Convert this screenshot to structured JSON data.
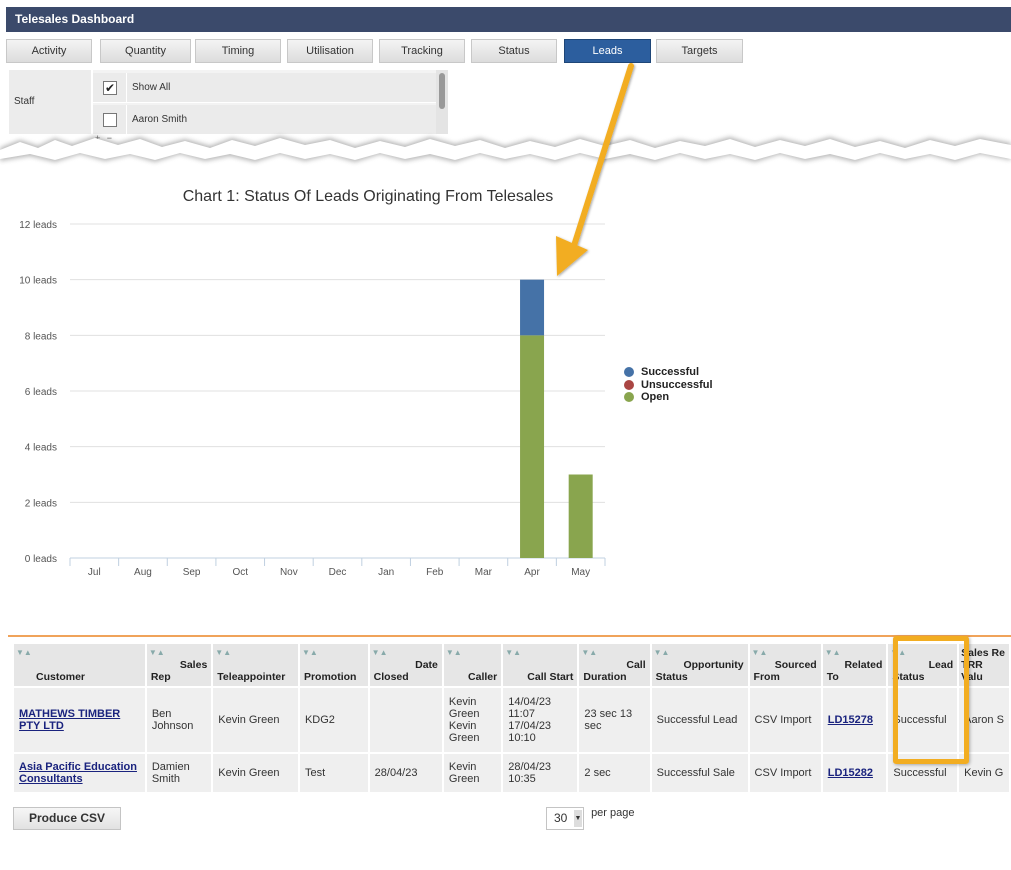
{
  "app": {
    "title": "Telesales Dashboard"
  },
  "tabs": [
    {
      "label": "Activity"
    },
    {
      "label": "Quantity"
    },
    {
      "label": "Timing"
    },
    {
      "label": "Utilisation"
    },
    {
      "label": "Tracking"
    },
    {
      "label": "Status"
    },
    {
      "label": "Leads",
      "active": true
    },
    {
      "label": "Targets"
    }
  ],
  "staff": {
    "label": "Staff",
    "items": [
      {
        "label": "Show All",
        "checked": true
      },
      {
        "label": "Aaron Smith",
        "checked": false
      }
    ]
  },
  "chart": {
    "title": "Chart 1: Status Of Leads Originating From Telesales"
  },
  "chart_data": {
    "type": "bar",
    "stacked": true,
    "title": "Chart 1: Status Of Leads Originating From Telesales",
    "categories": [
      "Jul",
      "Aug",
      "Sep",
      "Oct",
      "Nov",
      "Dec",
      "Jan",
      "Feb",
      "Mar",
      "Apr",
      "May"
    ],
    "series": [
      {
        "name": "Successful",
        "color": "#4572a7",
        "values": [
          0,
          0,
          0,
          0,
          0,
          0,
          0,
          0,
          0,
          2,
          0
        ]
      },
      {
        "name": "Unsuccessful",
        "color": "#aa4643",
        "values": [
          0,
          0,
          0,
          0,
          0,
          0,
          0,
          0,
          0,
          0,
          0
        ]
      },
      {
        "name": "Open",
        "color": "#89a54e",
        "values": [
          0,
          0,
          0,
          0,
          0,
          0,
          0,
          0,
          0,
          8,
          3
        ]
      }
    ],
    "ylim": [
      0,
      12
    ],
    "yticks": [
      0,
      2,
      4,
      6,
      8,
      10,
      12
    ],
    "ytick_labels": [
      "0 leads",
      "2 leads",
      "4 leads",
      "6 leads",
      "8 leads",
      "10 leads",
      "12 leads"
    ],
    "grid": true,
    "legend": "right"
  },
  "table": {
    "columns": [
      {
        "top": "Customer",
        "bottom": ""
      },
      {
        "top": "Sales",
        "bottom": "Rep"
      },
      {
        "top": "",
        "bottom": "Teleappointer"
      },
      {
        "top": "",
        "bottom": "Promotion"
      },
      {
        "top": "Date",
        "bottom": "Closed"
      },
      {
        "top": "Caller",
        "bottom": ""
      },
      {
        "top": "Call Start",
        "bottom": ""
      },
      {
        "top": "Call",
        "bottom": "Duration"
      },
      {
        "top": "Opportunity",
        "bottom": "Status"
      },
      {
        "top": "Sourced",
        "bottom": "From"
      },
      {
        "top": "Related",
        "bottom": "To"
      },
      {
        "top": "Lead",
        "bottom": "Status"
      },
      {
        "top": "Sales Re",
        "bottom": "TRR Valu"
      }
    ],
    "rows": [
      {
        "customer": "MATHEWS TIMBER PTY LTD",
        "sales_rep": "Ben Johnson",
        "teleappointer": "Kevin Green",
        "promotion": "KDG2",
        "date_closed": "",
        "caller": "Kevin Green Kevin Green",
        "call_start": "14/04/23 11:07 17/04/23 10:10",
        "call_duration": "23 sec 13 sec",
        "opportunity_status": "Successful Lead",
        "sourced_from": "CSV Import",
        "related_to": "LD15278",
        "lead_status": "Successful",
        "sales_rep2": "Aaron S"
      },
      {
        "customer": "Asia Pacific Education Consultants",
        "sales_rep": "Damien Smith",
        "teleappointer": "Kevin Green",
        "promotion": "Test",
        "date_closed": "28/04/23",
        "caller": "Kevin Green",
        "call_start": "28/04/23 10:35",
        "call_duration": "2 sec",
        "opportunity_status": "Successful Sale",
        "sourced_from": "CSV Import",
        "related_to": "LD15282",
        "lead_status": "Successful",
        "sales_rep2": "Kevin G"
      }
    ]
  },
  "footer": {
    "csv_button": "Produce CSV",
    "per_page_value": "30",
    "per_page_label": "per page"
  },
  "zoom": {
    "plus": "+",
    "minus": "−"
  },
  "annotation_color": "#f2ad21"
}
